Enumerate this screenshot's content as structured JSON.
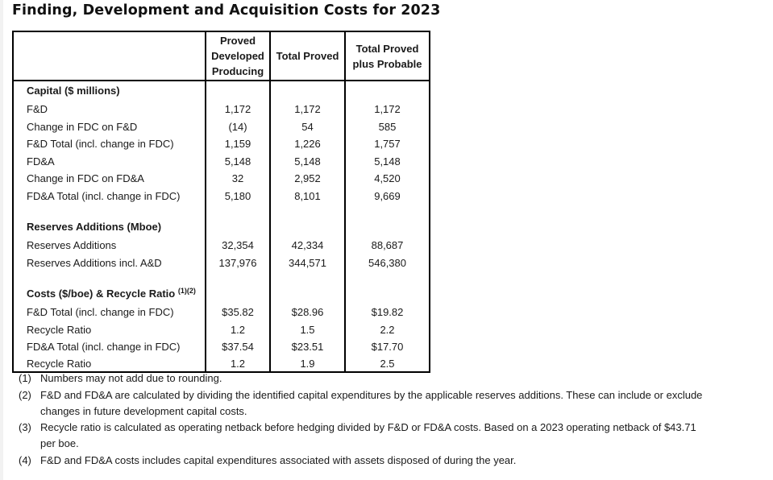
{
  "title": "Finding, Development and Acquisition Costs for 2023",
  "table": {
    "headers": {
      "label": "",
      "pdp": [
        "Proved",
        "Developed",
        "Producing"
      ],
      "tp": "Total Proved",
      "tpp": [
        "Total Proved",
        "plus Probable"
      ]
    },
    "sections": [
      {
        "title": "Capital ($ millions)",
        "superscript": "",
        "rows": [
          {
            "label": "F&D",
            "pdp": "1,172",
            "tp": "1,172",
            "tpp": "1,172"
          },
          {
            "label": "Change in FDC on F&D",
            "pdp": "(14)",
            "tp": "54",
            "tpp": "585"
          },
          {
            "label": "F&D Total (incl. change in FDC)",
            "pdp": "1,159",
            "tp": "1,226",
            "tpp": "1,757"
          },
          {
            "label": "FD&A",
            "pdp": "5,148",
            "tp": "5,148",
            "tpp": "5,148"
          },
          {
            "label": "Change in FDC on FD&A",
            "pdp": "32",
            "tp": "2,952",
            "tpp": "4,520"
          },
          {
            "label": "FD&A Total (incl. change in FDC)",
            "pdp": "5,180",
            "tp": "8,101",
            "tpp": "9,669"
          }
        ]
      },
      {
        "title": "Reserves Additions (Mboe)",
        "superscript": "",
        "rows": [
          {
            "label": "Reserves Additions",
            "pdp": "32,354",
            "tp": "42,334",
            "tpp": "88,687"
          },
          {
            "label": "Reserves Additions incl. A&D",
            "pdp": "137,976",
            "tp": "344,571",
            "tpp": "546,380"
          }
        ]
      },
      {
        "title": "Costs ($/boe) & Recycle Ratio",
        "superscript": "(1)(2)",
        "rows": [
          {
            "label": "F&D Total (incl. change in FDC)",
            "pdp": "$35.82",
            "tp": "$28.96",
            "tpp": "$19.82"
          },
          {
            "label": "Recycle Ratio",
            "pdp": "1.2",
            "tp": "1.5",
            "tpp": "2.2"
          },
          {
            "label": "FD&A Total (incl. change in FDC)",
            "pdp": "$37.54",
            "tp": "$23.51",
            "tpp": "$17.70"
          },
          {
            "label": "Recycle Ratio",
            "pdp": "1.2",
            "tp": "1.9",
            "tpp": "2.5"
          }
        ]
      }
    ]
  },
  "notes": [
    {
      "num": "(1)",
      "text": "Numbers may not add due to rounding."
    },
    {
      "num": "(2)",
      "text": "F&D and FD&A are calculated by dividing the identified capital expenditures by the applicable reserves additions. These can include or exclude changes in future development capital costs."
    },
    {
      "num": "(3)",
      "text": "Recycle ratio is calculated as operating netback before hedging divided by F&D or FD&A costs. Based on a 2023 operating netback of $43.71 per boe."
    },
    {
      "num": "(4)",
      "text": "F&D and FD&A costs includes capital expenditures associated with assets disposed of during the year."
    }
  ]
}
